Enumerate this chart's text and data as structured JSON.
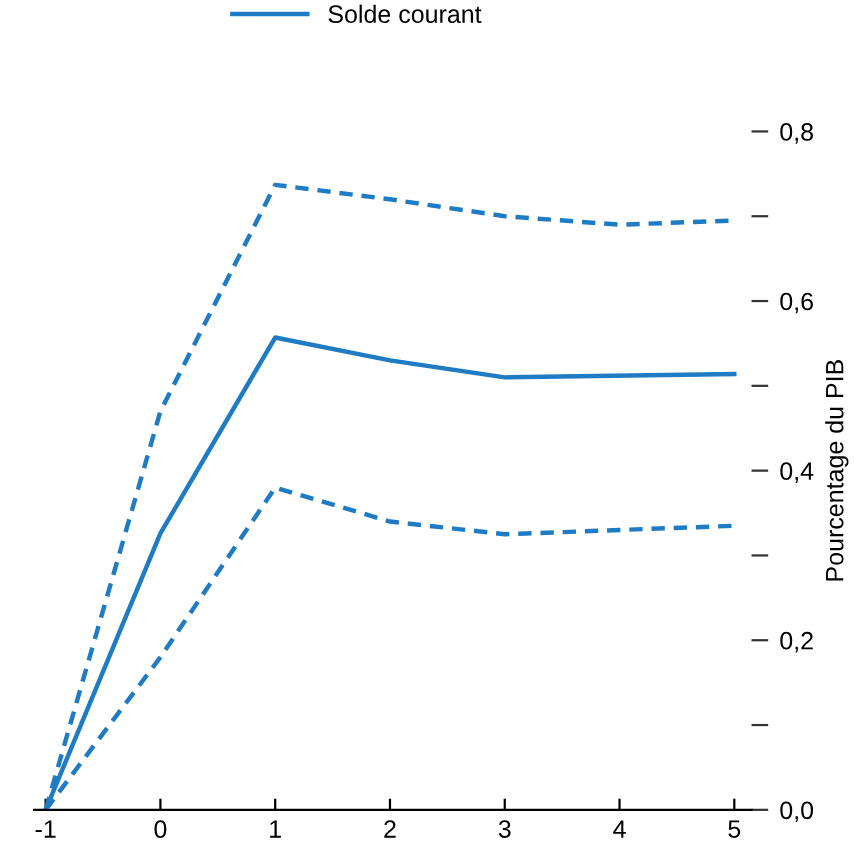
{
  "chart_data": {
    "type": "line",
    "ylabel": "Pourcentage du PIB",
    "x": [
      -1,
      0,
      1,
      2,
      3,
      4,
      5
    ],
    "series": [
      {
        "name": "Solde courant",
        "color": "#1f7cc4",
        "line_style": "solid",
        "values": [
          0,
          0.326,
          0.557,
          0.53,
          0.51,
          null,
          0.514
        ]
      },
      {
        "color": "#1f7cc4",
        "line_style": "dashed",
        "values": [
          0,
          0.47,
          0.737,
          0.72,
          0.7,
          0.69,
          0.695
        ]
      },
      {
        "color": "#1f7cc4",
        "line_style": "dashed",
        "values": [
          0,
          0.18,
          0.38,
          0.34,
          0.325,
          0.33,
          0.335
        ]
      }
    ],
    "xlim": [
      -1.1,
      5.15
    ],
    "xticks": [
      -1,
      0,
      1,
      2,
      3,
      4,
      5
    ],
    "ylim": [
      0,
      0.8
    ],
    "yticks": [
      {
        "value": 0,
        "label": "0,0"
      },
      {
        "value": 0.1,
        "label": null
      },
      {
        "value": 0.2,
        "label": "0,2"
      },
      {
        "value": 0.3,
        "label": null
      },
      {
        "value": 0.4,
        "label": "0,4"
      },
      {
        "value": 0.5,
        "label": null
      },
      {
        "value": 0.6,
        "label": "0,6"
      },
      {
        "value": 0.7,
        "label": null
      },
      {
        "value": 0.8,
        "label": "0,8"
      }
    ],
    "grid": false,
    "legend": "top",
    "marker": "none"
  }
}
